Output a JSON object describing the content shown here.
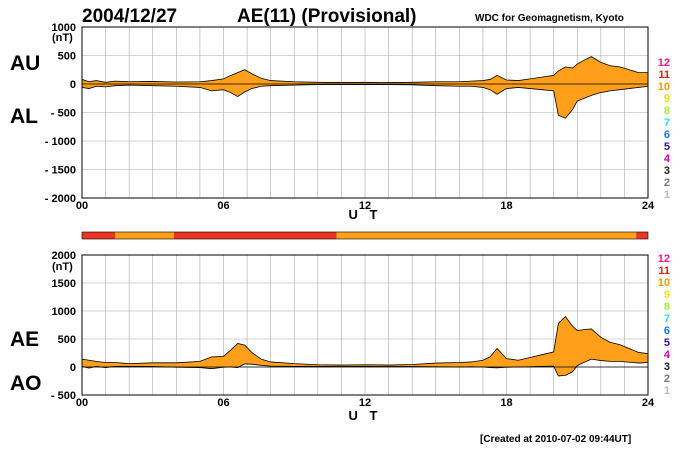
{
  "header": {
    "date": "2004/12/27",
    "title": "AE(11) (Provisional)",
    "source": "WDC for Geomagnetism, Kyoto",
    "created": "[Created at 2010-07-02 09:44UT]"
  },
  "chart_data": [
    {
      "type": "area",
      "name": "AU/AL",
      "labels": [
        "AU",
        "AL"
      ],
      "ylabel": "(nT)",
      "xlabel": "U T",
      "xlim": [
        0,
        24
      ],
      "ylim": [
        -2000,
        1000
      ],
      "yticks": [
        "1000",
        "500",
        "0",
        "- 500",
        "- 1000",
        "- 1500",
        "- 2000"
      ],
      "ytick_values": [
        1000,
        500,
        0,
        -500,
        -1000,
        -1500,
        -2000
      ],
      "xticks": [
        "00",
        "06",
        "12",
        "18",
        "24"
      ],
      "xtick_values": [
        0,
        6,
        12,
        18,
        24
      ],
      "grid": true,
      "x": [
        0,
        0.3,
        0.6,
        1.0,
        1.4,
        2.0,
        3.0,
        4.0,
        5.0,
        5.5,
        6.0,
        6.3,
        6.6,
        6.9,
        7.2,
        7.6,
        8.0,
        9.0,
        10.0,
        11.0,
        12.0,
        13.0,
        14.0,
        15.0,
        16.0,
        16.5,
        17.0,
        17.3,
        17.6,
        18.0,
        18.5,
        19.0,
        19.5,
        20.0,
        20.2,
        20.5,
        20.8,
        21.0,
        21.3,
        21.6,
        22.0,
        22.4,
        22.8,
        23.2,
        23.6,
        24.0
      ],
      "upper": [
        80,
        40,
        60,
        30,
        50,
        40,
        45,
        35,
        40,
        60,
        90,
        150,
        200,
        250,
        180,
        100,
        60,
        40,
        30,
        25,
        30,
        25,
        30,
        40,
        40,
        50,
        60,
        80,
        150,
        70,
        60,
        90,
        120,
        150,
        230,
        300,
        280,
        350,
        420,
        480,
        380,
        320,
        300,
        250,
        200,
        200
      ],
      "lower": [
        -60,
        -80,
        -40,
        -50,
        -30,
        -20,
        -30,
        -40,
        -60,
        -120,
        -100,
        -150,
        -220,
        -140,
        -80,
        -40,
        -30,
        -20,
        -10,
        -10,
        -10,
        -10,
        -15,
        -30,
        -40,
        -40,
        -60,
        -100,
        -180,
        -80,
        -60,
        -80,
        -100,
        -120,
        -550,
        -600,
        -450,
        -300,
        -250,
        -200,
        -150,
        -120,
        -100,
        -80,
        -60,
        -40
      ]
    },
    {
      "type": "area",
      "name": "AE/AO",
      "labels": [
        "AE",
        "AO"
      ],
      "ylabel": "(nT)",
      "xlabel": "U T",
      "xlim": [
        0,
        24
      ],
      "ylim": [
        -500,
        2000
      ],
      "yticks": [
        "2000",
        "1500",
        "1000",
        "500",
        "0",
        "- 500"
      ],
      "ytick_values": [
        2000,
        1500,
        1000,
        500,
        0,
        -500
      ],
      "xticks": [
        "00",
        "06",
        "12",
        "18",
        "24"
      ],
      "xtick_values": [
        0,
        6,
        12,
        18,
        24
      ],
      "grid": true,
      "x": [
        0,
        0.3,
        0.6,
        1.0,
        1.4,
        2.0,
        3.0,
        4.0,
        5.0,
        5.5,
        6.0,
        6.3,
        6.6,
        6.9,
        7.2,
        7.6,
        8.0,
        9.0,
        10.0,
        11.0,
        12.0,
        13.0,
        14.0,
        15.0,
        16.0,
        16.5,
        17.0,
        17.3,
        17.6,
        18.0,
        18.5,
        19.0,
        19.5,
        20.0,
        20.2,
        20.5,
        20.8,
        21.0,
        21.3,
        21.6,
        22.0,
        22.4,
        22.8,
        23.2,
        23.6,
        24.0
      ],
      "upper": [
        140,
        120,
        100,
        80,
        80,
        60,
        75,
        75,
        100,
        180,
        190,
        300,
        420,
        390,
        260,
        140,
        90,
        60,
        40,
        35,
        40,
        35,
        45,
        70,
        80,
        90,
        120,
        180,
        330,
        150,
        120,
        170,
        220,
        270,
        780,
        900,
        730,
        650,
        670,
        680,
        530,
        440,
        400,
        330,
        260,
        240
      ],
      "lower": [
        10,
        -20,
        10,
        -10,
        10,
        10,
        8,
        -3,
        -10,
        -30,
        -5,
        0,
        -10,
        55,
        50,
        30,
        15,
        10,
        10,
        8,
        10,
        8,
        8,
        5,
        0,
        5,
        0,
        -10,
        -15,
        -5,
        0,
        5,
        10,
        15,
        -160,
        -150,
        -85,
        25,
        85,
        140,
        115,
        100,
        100,
        85,
        70,
        80
      ]
    }
  ],
  "activity_bar": {
    "segments": [
      {
        "start": 0.0,
        "end": 1.4,
        "level": 11
      },
      {
        "start": 1.4,
        "end": 3.9,
        "level": 10
      },
      {
        "start": 3.9,
        "end": 10.8,
        "level": 11
      },
      {
        "start": 10.8,
        "end": 23.5,
        "level": 10
      },
      {
        "start": 23.5,
        "end": 24.0,
        "level": 11
      }
    ]
  },
  "legend": {
    "levels": [
      "12",
      "11",
      "10",
      "9",
      "8",
      "7",
      "6",
      "5",
      "4",
      "3",
      "2",
      "1"
    ],
    "colors": [
      "#ff1493",
      "#ee2200",
      "#ff9900",
      "#ffdd00",
      "#aaee33",
      "#33dddd",
      "#1177ff",
      "#3311aa",
      "#cc00cc",
      "#222222",
      "#777777",
      "#bbbbbb"
    ]
  },
  "colors": {
    "level11": "#ee3322",
    "level10": "#ff9f1a"
  }
}
